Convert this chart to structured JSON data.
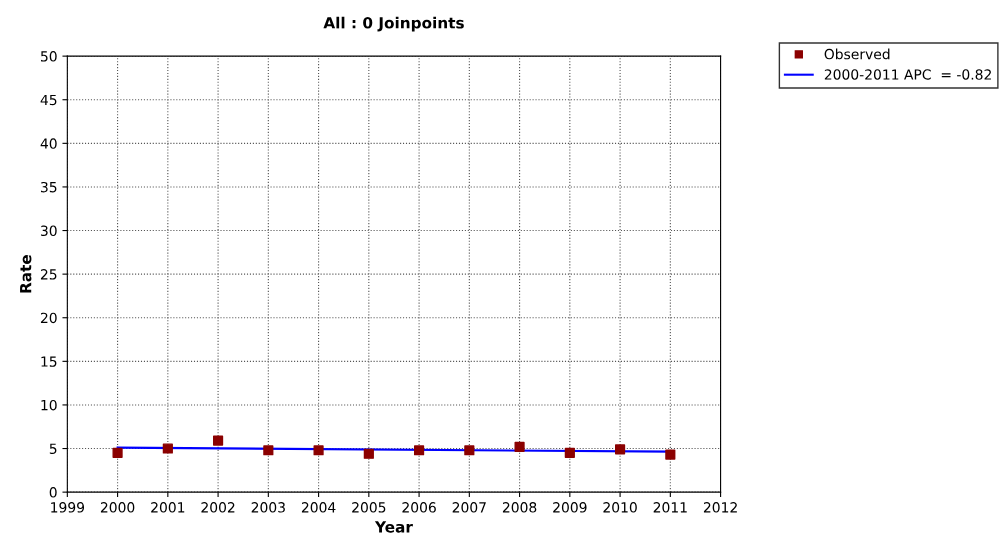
{
  "chart_data": {
    "type": "scatter",
    "title": "All : 0 Joinpoints",
    "xlabel": "Year",
    "ylabel": "Rate",
    "series": [
      {
        "name": "Observed",
        "color": "#8b0000",
        "marker": "square",
        "x": [
          2000,
          2001,
          2002,
          2003,
          2004,
          2005,
          2006,
          2007,
          2008,
          2009,
          2010,
          2011
        ],
        "values": [
          4.5,
          5.0,
          5.9,
          4.8,
          4.8,
          4.4,
          4.8,
          4.8,
          5.2,
          4.5,
          4.9,
          4.3
        ]
      },
      {
        "name": "2000-2011 APC  = -0.82",
        "type": "line",
        "color": "#0000ff",
        "marker": "none",
        "line_style": "solid",
        "x": [
          2000,
          2011
        ],
        "values": [
          5.1,
          4.65
        ]
      }
    ],
    "xlim": [
      1999,
      2012
    ],
    "xticks": [
      1999,
      2000,
      2001,
      2002,
      2003,
      2004,
      2005,
      2006,
      2007,
      2008,
      2009,
      2010,
      2011,
      2012
    ],
    "ylim": [
      0,
      50
    ],
    "yticks": [
      0,
      5,
      10,
      15,
      20,
      25,
      30,
      35,
      40,
      45,
      50
    ],
    "grid": true,
    "legend": "top right"
  }
}
